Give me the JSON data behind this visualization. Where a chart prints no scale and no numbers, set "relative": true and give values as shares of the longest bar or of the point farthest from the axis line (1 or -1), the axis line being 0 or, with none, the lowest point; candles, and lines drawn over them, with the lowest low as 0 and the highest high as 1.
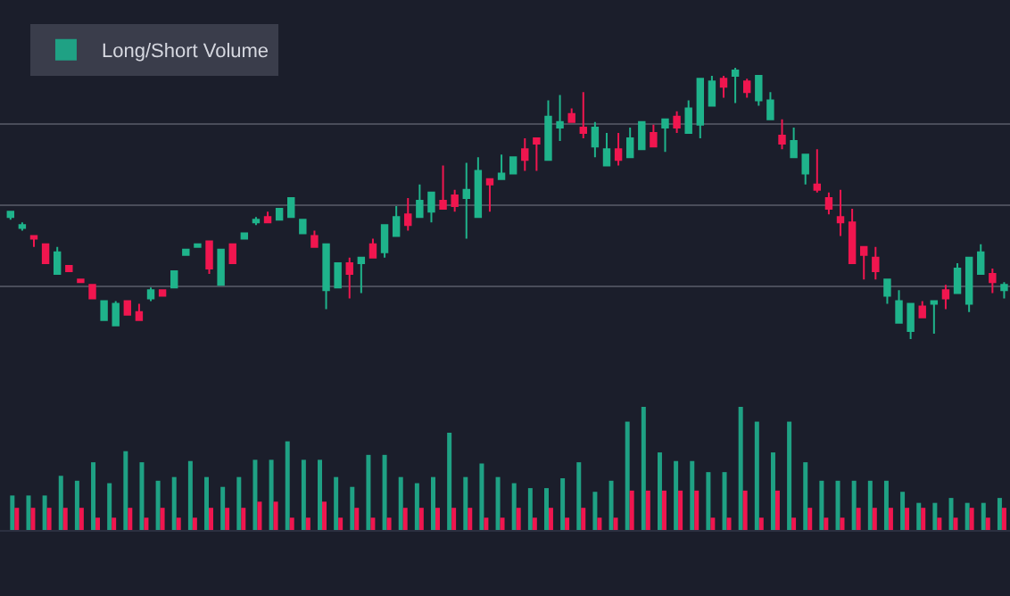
{
  "chart_data": [
    {
      "type": "candlestick",
      "relative": true,
      "grid": "y",
      "categories": [
        null,
        null,
        null,
        null,
        null,
        null,
        null,
        null,
        null,
        null,
        null,
        null,
        null,
        null,
        null,
        null,
        null,
        null,
        null,
        null,
        null,
        null,
        null,
        null,
        null,
        null,
        null,
        null,
        null,
        null,
        null,
        null,
        null,
        null,
        null,
        null,
        null,
        null,
        null,
        null,
        null,
        null,
        null,
        null,
        null,
        null,
        null,
        null,
        null,
        null,
        null,
        null,
        null,
        null,
        null,
        null,
        null,
        null,
        null,
        null,
        null,
        null,
        null,
        null,
        null,
        null,
        null,
        null,
        null,
        null,
        null,
        null,
        null,
        null,
        null,
        null,
        null,
        null,
        null,
        null,
        null,
        null,
        null,
        null,
        null,
        null
      ],
      "ohlc": [
        [
          0.45,
          0.47,
          0.44,
          0.47
        ],
        [
          0.41,
          0.43,
          0.4,
          0.42
        ],
        [
          0.38,
          0.38,
          0.34,
          0.37
        ],
        [
          0.35,
          0.35,
          0.28,
          0.28
        ],
        [
          0.24,
          0.34,
          0.24,
          0.32
        ],
        [
          0.27,
          0.27,
          0.25,
          0.25
        ],
        [
          0.22,
          0.22,
          0.21,
          0.21
        ],
        [
          0.2,
          0.2,
          0.15,
          0.15
        ],
        [
          0.07,
          0.14,
          0.07,
          0.14
        ],
        [
          0.05,
          0.14,
          0.05,
          0.13
        ],
        [
          0.14,
          0.14,
          0.09,
          0.09
        ],
        [
          0.1,
          0.13,
          0.07,
          0.07
        ],
        [
          0.15,
          0.19,
          0.14,
          0.18
        ],
        [
          0.18,
          0.18,
          0.16,
          0.16
        ],
        [
          0.19,
          0.25,
          0.19,
          0.25
        ],
        [
          0.31,
          0.33,
          0.31,
          0.33
        ],
        [
          0.34,
          0.35,
          0.34,
          0.35
        ],
        [
          0.36,
          0.36,
          0.24,
          0.26
        ],
        [
          0.2,
          0.33,
          0.2,
          0.33
        ],
        [
          0.35,
          0.35,
          0.28,
          0.28
        ],
        [
          0.37,
          0.39,
          0.37,
          0.39
        ],
        [
          0.43,
          0.45,
          0.42,
          0.44
        ],
        [
          0.45,
          0.47,
          0.43,
          0.43
        ],
        [
          0.44,
          0.48,
          0.44,
          0.48
        ],
        [
          0.45,
          0.52,
          0.45,
          0.52
        ],
        [
          0.39,
          0.44,
          0.39,
          0.44
        ],
        [
          0.38,
          0.4,
          0.34,
          0.34
        ],
        [
          0.18,
          0.35,
          0.11,
          0.35
        ],
        [
          0.19,
          0.28,
          0.19,
          0.28
        ],
        [
          0.28,
          0.3,
          0.15,
          0.24
        ],
        [
          0.28,
          0.3,
          0.17,
          0.3
        ],
        [
          0.35,
          0.37,
          0.3,
          0.3
        ],
        [
          0.32,
          0.42,
          0.3,
          0.42
        ],
        [
          0.38,
          0.49,
          0.38,
          0.45
        ],
        [
          0.46,
          0.52,
          0.4,
          0.42
        ],
        [
          0.45,
          0.57,
          0.45,
          0.51
        ],
        [
          0.47,
          0.54,
          0.43,
          0.54
        ],
        [
          0.51,
          0.64,
          0.48,
          0.48
        ],
        [
          0.53,
          0.55,
          0.47,
          0.49
        ],
        [
          0.52,
          0.65,
          0.37,
          0.55
        ],
        [
          0.45,
          0.67,
          0.45,
          0.62
        ],
        [
          0.59,
          0.59,
          0.47,
          0.57
        ],
        [
          0.59,
          0.68,
          0.59,
          0.61
        ],
        [
          0.61,
          0.67,
          0.61,
          0.67
        ],
        [
          0.7,
          0.74,
          0.62,
          0.66
        ],
        [
          0.74,
          0.74,
          0.62,
          0.72
        ],
        [
          0.66,
          0.88,
          0.66,
          0.82
        ],
        [
          0.78,
          0.9,
          0.73,
          0.8
        ],
        [
          0.83,
          0.85,
          0.8,
          0.8
        ],
        [
          0.78,
          0.91,
          0.74,
          0.76
        ],
        [
          0.71,
          0.8,
          0.67,
          0.78
        ],
        [
          0.64,
          0.76,
          0.64,
          0.7
        ],
        [
          0.7,
          0.76,
          0.64,
          0.66
        ],
        [
          0.67,
          0.78,
          0.67,
          0.74
        ],
        [
          0.7,
          0.8,
          0.7,
          0.8
        ],
        [
          0.76,
          0.79,
          0.71,
          0.71
        ],
        [
          0.78,
          0.81,
          0.69,
          0.81
        ],
        [
          0.82,
          0.84,
          0.76,
          0.78
        ],
        [
          0.76,
          0.88,
          0.76,
          0.85
        ],
        [
          0.79,
          0.96,
          0.74,
          0.96
        ],
        [
          0.86,
          0.97,
          0.86,
          0.95
        ],
        [
          0.96,
          0.97,
          0.89,
          0.93
        ],
        [
          0.97,
          1.0,
          0.87,
          0.99
        ],
        [
          0.95,
          0.96,
          0.89,
          0.91
        ],
        [
          0.88,
          0.97,
          0.86,
          0.97
        ],
        [
          0.81,
          0.91,
          0.81,
          0.88
        ],
        [
          0.75,
          0.81,
          0.7,
          0.72
        ],
        [
          0.67,
          0.78,
          0.67,
          0.73
        ],
        [
          0.61,
          0.68,
          0.57,
          0.68
        ],
        [
          0.57,
          0.7,
          0.54,
          0.55
        ],
        [
          0.52,
          0.54,
          0.46,
          0.48
        ],
        [
          0.45,
          0.55,
          0.38,
          0.43
        ],
        [
          0.43,
          0.48,
          0.28,
          0.28
        ],
        [
          0.34,
          0.34,
          0.22,
          0.31
        ],
        [
          0.3,
          0.34,
          0.22,
          0.25
        ],
        [
          0.16,
          0.22,
          0.13,
          0.22
        ],
        [
          0.06,
          0.18,
          0.06,
          0.14
        ],
        [
          0.03,
          0.13,
          0.0,
          0.13
        ],
        [
          0.12,
          0.14,
          0.08,
          0.08
        ],
        [
          0.13,
          0.14,
          0.02,
          0.14
        ],
        [
          0.18,
          0.2,
          0.11,
          0.15
        ],
        [
          0.17,
          0.28,
          0.17,
          0.26
        ],
        [
          0.13,
          0.3,
          0.1,
          0.3
        ],
        [
          0.24,
          0.35,
          0.24,
          0.32
        ],
        [
          0.24,
          0.26,
          0.17,
          0.21
        ],
        [
          0.18,
          0.21,
          0.15,
          0.2
        ]
      ]
    },
    {
      "type": "bar",
      "relative": true,
      "legend": "top left",
      "categories": [
        null,
        null,
        null,
        null,
        null,
        null,
        null,
        null,
        null,
        null,
        null,
        null,
        null,
        null,
        null,
        null,
        null,
        null,
        null,
        null,
        null,
        null,
        null,
        null,
        null,
        null,
        null,
        null,
        null,
        null,
        null,
        null,
        null,
        null,
        null,
        null,
        null,
        null,
        null,
        null,
        null,
        null,
        null,
        null,
        null,
        null,
        null,
        null,
        null,
        null,
        null,
        null,
        null,
        null,
        null,
        null,
        null,
        null,
        null,
        null,
        null,
        null
      ],
      "series": [
        {
          "name": "Long/Short Volume",
          "color": "#1fa184",
          "values": [
            0.28,
            0.28,
            0.28,
            0.44,
            0.4,
            0.55,
            0.38,
            0.64,
            0.55,
            0.4,
            0.43,
            0.56,
            0.43,
            0.35,
            0.43,
            0.57,
            0.57,
            0.72,
            0.57,
            0.57,
            0.43,
            0.35,
            0.61,
            0.61,
            0.43,
            0.38,
            0.43,
            0.79,
            0.43,
            0.54,
            0.43,
            0.38,
            0.34,
            0.34,
            0.42,
            0.55,
            0.31,
            0.4,
            0.88,
            1,
            0.63,
            0.56,
            0.56,
            0.47,
            0.47,
            1,
            0.88,
            0.63,
            0.88,
            0.55,
            0.4,
            0.4,
            0.4,
            0.4,
            0.4,
            0.31,
            0.22,
            0.22,
            0.26,
            0.22,
            0.22,
            0.26
          ]
        },
        {
          "color": "#f0164f",
          "values": [
            0.18,
            0.18,
            0.18,
            0.18,
            0.18,
            0.1,
            0.1,
            0.18,
            0.1,
            0.18,
            0.1,
            0.1,
            0.18,
            0.18,
            0.18,
            0.23,
            0.23,
            0.1,
            0.1,
            0.23,
            0.1,
            0.18,
            0.1,
            0.1,
            0.18,
            0.18,
            0.18,
            0.18,
            0.18,
            0.1,
            0.1,
            0.18,
            0.1,
            0.18,
            0.1,
            0.18,
            0.1,
            0.1,
            0.32,
            0.32,
            0.32,
            0.32,
            0.32,
            0.1,
            0.1,
            0.32,
            0.1,
            0.32,
            0.1,
            0.18,
            0.1,
            0.1,
            0.18,
            0.18,
            0.18,
            0.18,
            0.18,
            0.1,
            0.1,
            0.18,
            0.1,
            0.18
          ]
        }
      ]
    }
  ]
}
